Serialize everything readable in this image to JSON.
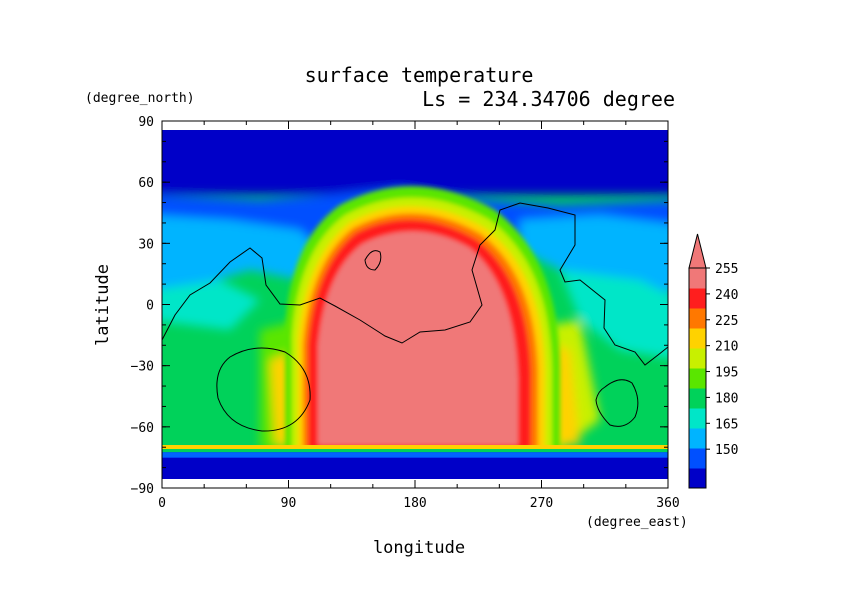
{
  "chart_data": {
    "type": "heatmap",
    "title": "surface temperature",
    "subtitle": "Ls = 234.34706 degree",
    "xlabel": "longitude",
    "ylabel": "latitude",
    "x_units": "(degree_east)",
    "y_units": "(degree_north)",
    "xlim": [
      0,
      360
    ],
    "ylim": [
      -90,
      90
    ],
    "x_ticks": [
      0,
      90,
      180,
      270,
      360
    ],
    "y_ticks": [
      90,
      60,
      30,
      0,
      -30,
      -60,
      -90
    ],
    "colorbar": {
      "levels": [
        150,
        165,
        180,
        195,
        210,
        225,
        240,
        255
      ],
      "tick_labels": [
        "150",
        "165",
        "180",
        "195",
        "210",
        "225",
        "240",
        "255"
      ],
      "colors": [
        "#0000c8",
        "#0050ff",
        "#00b4ff",
        "#00e6c8",
        "#00d25a",
        "#5ae600",
        "#c8f000",
        "#ffd200",
        "#ff7800",
        "#ff1e1e",
        "#f07878"
      ],
      "extend": "max"
    },
    "field_description_values": {
      "south_polar_cap": 148,
      "north_polar_cap": 148,
      "southern_dayside_max": 260,
      "northern_midlatitude": 175
    }
  }
}
